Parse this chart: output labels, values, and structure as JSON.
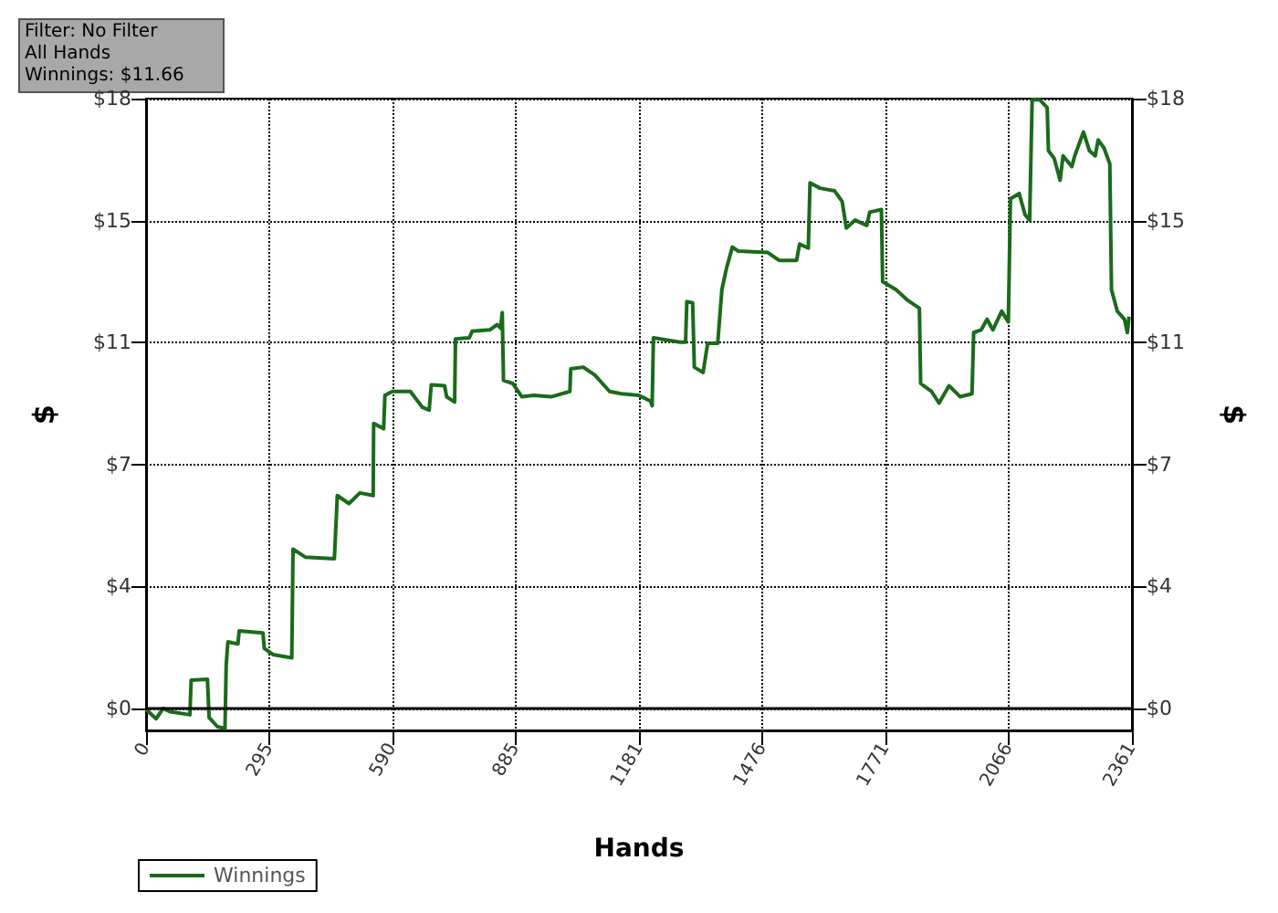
{
  "chart_data": {
    "type": "line",
    "xlabel": "Hands",
    "ylabel": "$",
    "y2label": "$",
    "annotations": [
      "Filter: No Filter",
      "All Hands",
      "Winnings: $11.66"
    ],
    "xlim": [
      0,
      2361
    ],
    "xticks": [
      0,
      295,
      590,
      885,
      1181,
      1476,
      1771,
      2066,
      2361
    ],
    "ylim": [
      -0.66,
      18.333
    ],
    "yticks": [
      {
        "value": 0,
        "label": "$0"
      },
      {
        "value": 3.667,
        "label": "$4"
      },
      {
        "value": 7.333,
        "label": "$7"
      },
      {
        "value": 11,
        "label": "$11"
      },
      {
        "value": 14.667,
        "label": "$15"
      },
      {
        "value": 18.333,
        "label": "$18"
      }
    ],
    "y2lim": [
      -0.66,
      18.333
    ],
    "y2ticks": [
      {
        "value": 0,
        "label": "$0"
      },
      {
        "value": 3.667,
        "label": "$4"
      },
      {
        "value": 7.333,
        "label": "$7"
      },
      {
        "value": 11,
        "label": "$11"
      },
      {
        "value": 14.667,
        "label": "$15"
      },
      {
        "value": 18.333,
        "label": "$18"
      }
    ],
    "grid": true,
    "legend": "bottom left",
    "marker": "none",
    "line_style": "solid",
    "ref_lines": [
      {
        "axis": "y",
        "value": 0,
        "color": "#000000"
      }
    ],
    "series": [
      {
        "name": "Winnings",
        "color": "#1a6b1a",
        "x": [
          0,
          24,
          41,
          58,
          105,
          108,
          147,
          151,
          171,
          189,
          192,
          196,
          220,
          223,
          280,
          283,
          304,
          349,
          352,
          381,
          451,
          458,
          486,
          512,
          544,
          545,
          557,
          569,
          572,
          590,
          633,
          662,
          678,
          683,
          715,
          720,
          739,
          741,
          774,
          781,
          823,
          841,
          849,
          853,
          856,
          878,
          900,
          928,
          970,
          1015,
          1017,
          1047,
          1075,
          1110,
          1138,
          1180,
          1208,
          1212,
          1215,
          1278,
          1292,
          1295,
          1309,
          1313,
          1334,
          1345,
          1369,
          1379,
          1390,
          1404,
          1418,
          1488,
          1516,
          1558,
          1565,
          1586,
          1590,
          1614,
          1649,
          1667,
          1677,
          1698,
          1726,
          1733,
          1761,
          1764,
          1796,
          1824,
          1852,
          1855,
          1881,
          1899,
          1923,
          1950,
          1978,
          1982,
          2000,
          2014,
          2028,
          2049,
          2065,
          2070,
          2091,
          2105,
          2116,
          2122,
          2140,
          2158,
          2161,
          2175,
          2189,
          2196,
          2217,
          2224,
          2245,
          2259,
          2273,
          2280,
          2294,
          2308,
          2312,
          2326,
          2343,
          2350,
          2354
        ],
        "values": [
          -0.03,
          -0.31,
          0,
          -0.1,
          -0.19,
          0.85,
          0.88,
          -0.27,
          -0.55,
          -0.6,
          1.33,
          2.0,
          1.94,
          2.33,
          2.27,
          1.81,
          1.62,
          1.52,
          4.79,
          4.55,
          4.5,
          6.4,
          6.16,
          6.48,
          6.4,
          8.57,
          8.49,
          8.41,
          9.41,
          9.53,
          9.53,
          9.05,
          8.97,
          9.73,
          9.7,
          9.37,
          9.21,
          11.11,
          11.14,
          11.34,
          11.38,
          11.54,
          11.43,
          11.9,
          9.86,
          9.77,
          9.37,
          9.41,
          9.37,
          9.53,
          10.21,
          10.26,
          10.02,
          9.53,
          9.46,
          9.41,
          9.24,
          9.1,
          11.14,
          11.01,
          11.01,
          12.23,
          12.19,
          10.26,
          10.1,
          10.98,
          10.98,
          12.59,
          13.23,
          13.87,
          13.75,
          13.71,
          13.47,
          13.47,
          13.96,
          13.84,
          15.8,
          15.64,
          15.56,
          15.24,
          14.44,
          14.68,
          14.52,
          14.92,
          15.0,
          12.83,
          12.59,
          12.27,
          12.03,
          9.77,
          9.53,
          9.18,
          9.7,
          9.37,
          9.46,
          11.3,
          11.38,
          11.7,
          11.38,
          11.94,
          11.62,
          15.32,
          15.48,
          14.84,
          14.68,
          18.3,
          18.3,
          18.06,
          16.77,
          16.53,
          15.88,
          16.61,
          16.29,
          16.61,
          17.33,
          16.77,
          16.61,
          17.09,
          16.85,
          16.37,
          12.59,
          11.94,
          11.7,
          11.3,
          11.78
        ]
      }
    ]
  }
}
